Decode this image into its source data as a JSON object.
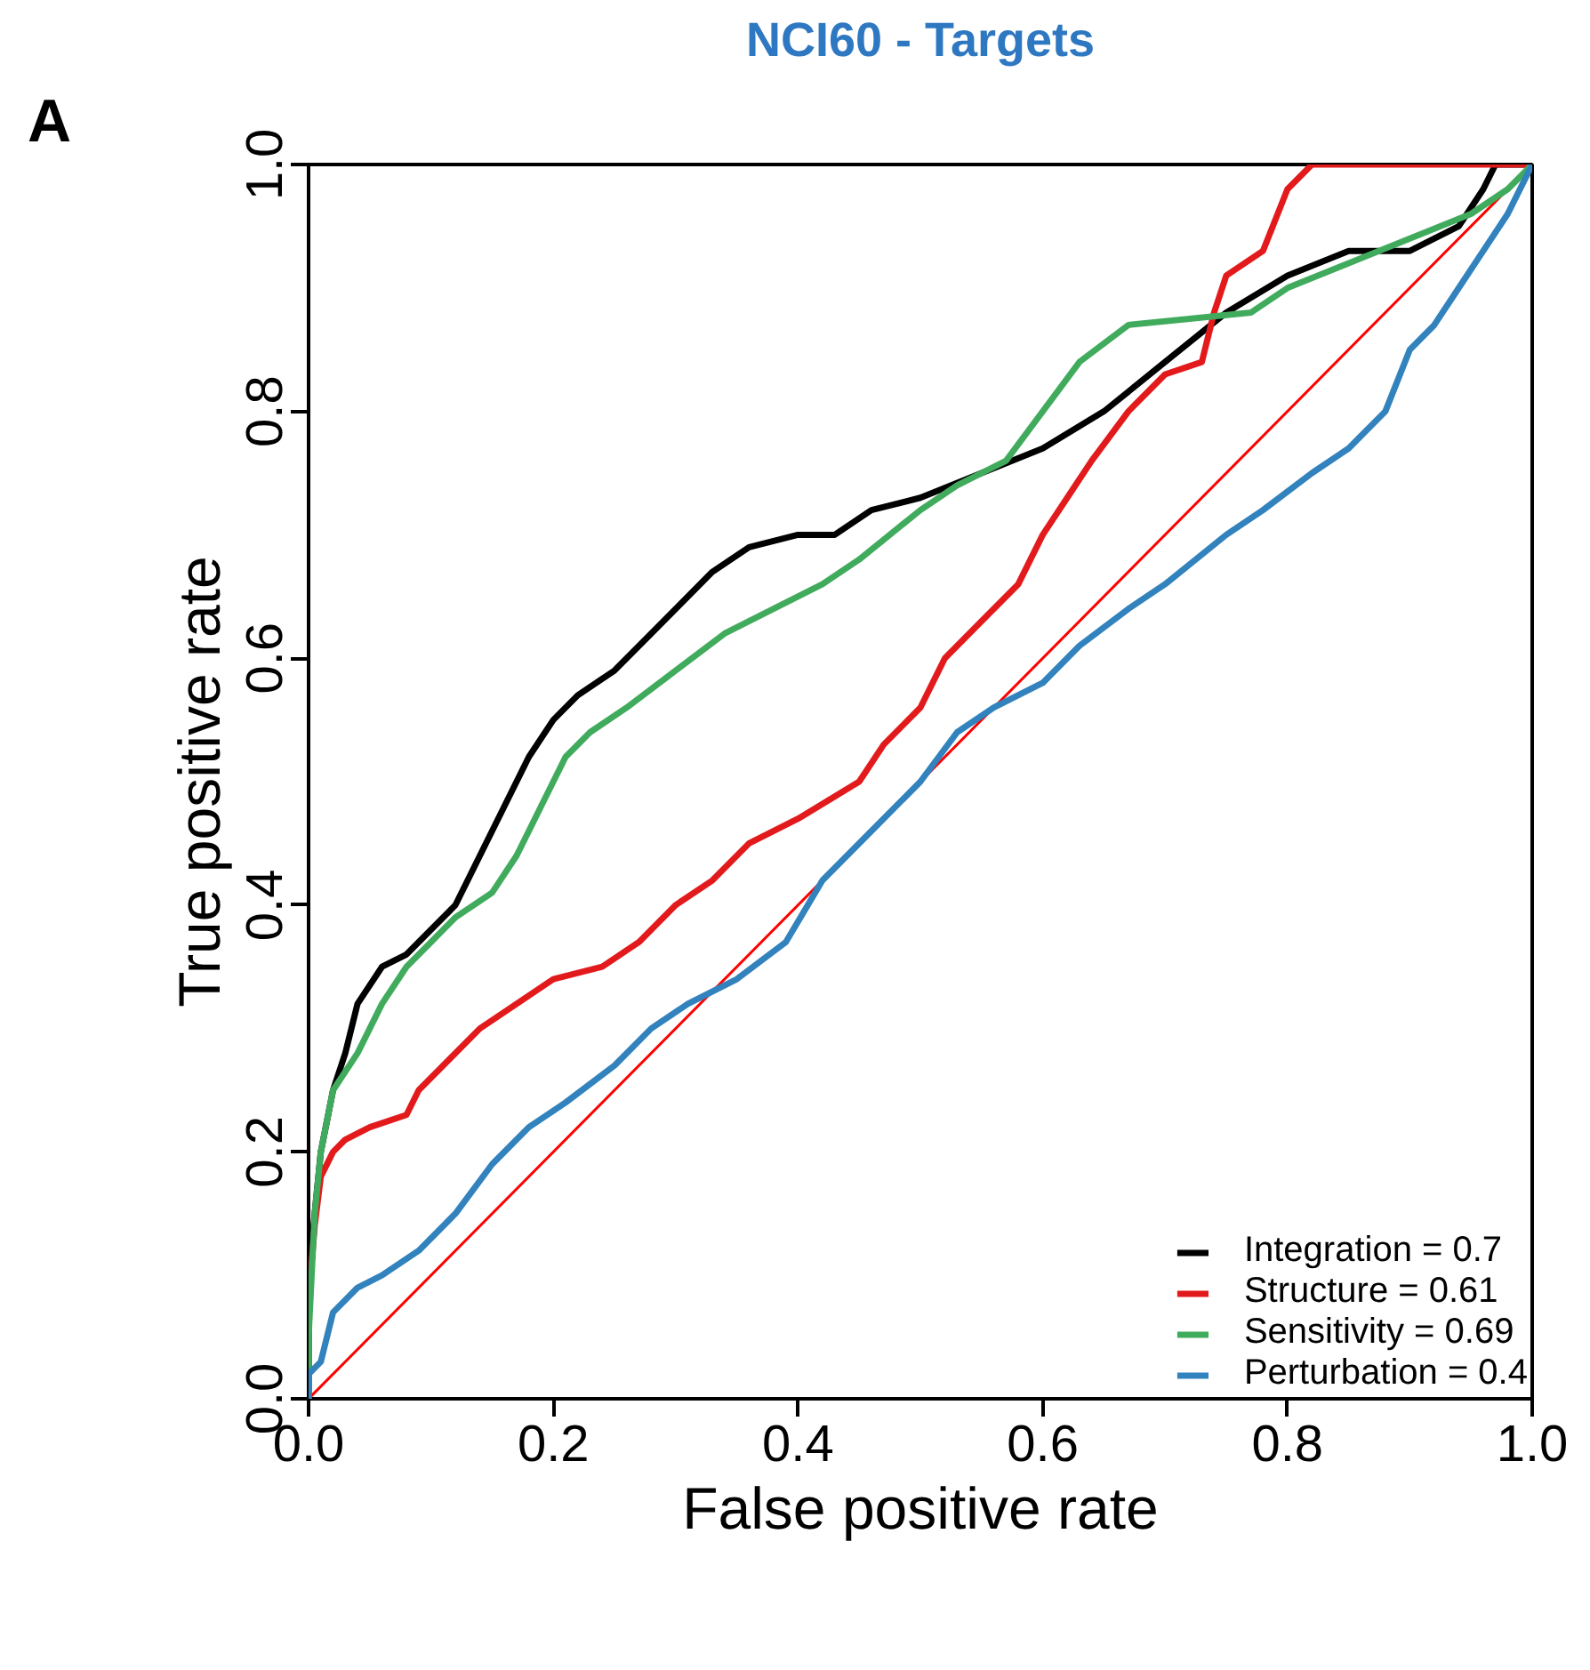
{
  "chart_data": {
    "type": "line",
    "title": "NCI60 - Targets",
    "xlabel": "False positive rate",
    "ylabel": "True positive rate",
    "xlim": [
      0,
      1
    ],
    "ylim": [
      0,
      1
    ],
    "xticks": [
      {
        "value": 0,
        "label": "0.0"
      },
      0.2,
      0.4,
      0.6,
      0.8,
      {
        "value": 1,
        "label": "1.0"
      }
    ],
    "yticks": [
      {
        "value": 0,
        "label": "0.0"
      },
      0.2,
      0.4,
      0.6,
      0.8,
      {
        "value": 1,
        "label": "1.0"
      }
    ],
    "grid": false,
    "legend": "bottom right",
    "line_style": "solid",
    "marker": "none",
    "annotations": [
      "A"
    ],
    "series": [
      {
        "name": "Integration = 0.7",
        "color": "#000000",
        "x": [
          0,
          0,
          0.005,
          0.01,
          0.02,
          0.03,
          0.04,
          0.06,
          0.08,
          0.1,
          0.12,
          0.14,
          0.16,
          0.18,
          0.2,
          0.22,
          0.25,
          0.28,
          0.3,
          0.33,
          0.36,
          0.4,
          0.43,
          0.46,
          0.5,
          0.55,
          0.6,
          0.65,
          0.7,
          0.75,
          0.8,
          0.85,
          0.9,
          0.94,
          0.96,
          0.97,
          1
        ],
        "values": [
          0,
          0.1,
          0.15,
          0.2,
          0.25,
          0.28,
          0.32,
          0.35,
          0.36,
          0.38,
          0.4,
          0.44,
          0.48,
          0.52,
          0.55,
          0.57,
          0.59,
          0.62,
          0.64,
          0.67,
          0.69,
          0.7,
          0.7,
          0.72,
          0.73,
          0.75,
          0.77,
          0.8,
          0.84,
          0.88,
          0.91,
          0.93,
          0.93,
          0.95,
          0.98,
          1,
          1
        ]
      },
      {
        "name": "Structure = 0.61",
        "color": "#e31a1c",
        "x": [
          0,
          0,
          0.005,
          0.01,
          0.02,
          0.03,
          0.05,
          0.08,
          0.09,
          0.11,
          0.14,
          0.17,
          0.2,
          0.24,
          0.27,
          0.3,
          0.33,
          0.36,
          0.4,
          0.45,
          0.47,
          0.5,
          0.52,
          0.55,
          0.58,
          0.6,
          0.62,
          0.64,
          0.67,
          0.7,
          0.73,
          0.74,
          0.75,
          0.78,
          0.8,
          0.82,
          1
        ],
        "values": [
          0,
          0.08,
          0.14,
          0.18,
          0.2,
          0.21,
          0.22,
          0.23,
          0.25,
          0.27,
          0.3,
          0.32,
          0.34,
          0.35,
          0.37,
          0.4,
          0.42,
          0.45,
          0.47,
          0.5,
          0.53,
          0.56,
          0.6,
          0.63,
          0.66,
          0.7,
          0.73,
          0.76,
          0.8,
          0.83,
          0.84,
          0.88,
          0.91,
          0.93,
          0.98,
          1,
          1
        ]
      },
      {
        "name": "Sensitivity = 0.69",
        "color": "#41ab5d",
        "x": [
          0,
          0,
          0.005,
          0.01,
          0.02,
          0.04,
          0.06,
          0.08,
          0.1,
          0.12,
          0.15,
          0.17,
          0.19,
          0.21,
          0.23,
          0.26,
          0.3,
          0.34,
          0.38,
          0.42,
          0.45,
          0.5,
          0.53,
          0.57,
          0.6,
          0.63,
          0.67,
          0.72,
          0.77,
          0.8,
          0.85,
          0.9,
          0.95,
          0.98,
          1
        ],
        "values": [
          0,
          0.05,
          0.15,
          0.2,
          0.25,
          0.28,
          0.32,
          0.35,
          0.37,
          0.39,
          0.41,
          0.44,
          0.48,
          0.52,
          0.54,
          0.56,
          0.59,
          0.62,
          0.64,
          0.66,
          0.68,
          0.72,
          0.74,
          0.76,
          0.8,
          0.84,
          0.87,
          0.875,
          0.88,
          0.9,
          0.92,
          0.94,
          0.96,
          0.98,
          1
        ]
      },
      {
        "name": "Perturbation = 0.4",
        "color": "#3182bd",
        "x": [
          0,
          0,
          0.01,
          0.02,
          0.04,
          0.06,
          0.09,
          0.12,
          0.15,
          0.18,
          0.21,
          0.25,
          0.28,
          0.31,
          0.35,
          0.39,
          0.42,
          0.46,
          0.5,
          0.53,
          0.56,
          0.6,
          0.63,
          0.67,
          0.7,
          0.75,
          0.78,
          0.82,
          0.85,
          0.88,
          0.9,
          0.92,
          0.94,
          0.96,
          0.98,
          1
        ],
        "values": [
          0,
          0.02,
          0.03,
          0.07,
          0.09,
          0.1,
          0.12,
          0.15,
          0.19,
          0.22,
          0.24,
          0.27,
          0.3,
          0.32,
          0.34,
          0.37,
          0.42,
          0.46,
          0.5,
          0.54,
          0.56,
          0.58,
          0.61,
          0.64,
          0.66,
          0.7,
          0.72,
          0.75,
          0.77,
          0.8,
          0.85,
          0.87,
          0.9,
          0.93,
          0.96,
          1
        ]
      },
      {
        "color": "#ff0000",
        "x": [
          0,
          1
        ],
        "values": [
          0,
          1
        ]
      }
    ]
  }
}
